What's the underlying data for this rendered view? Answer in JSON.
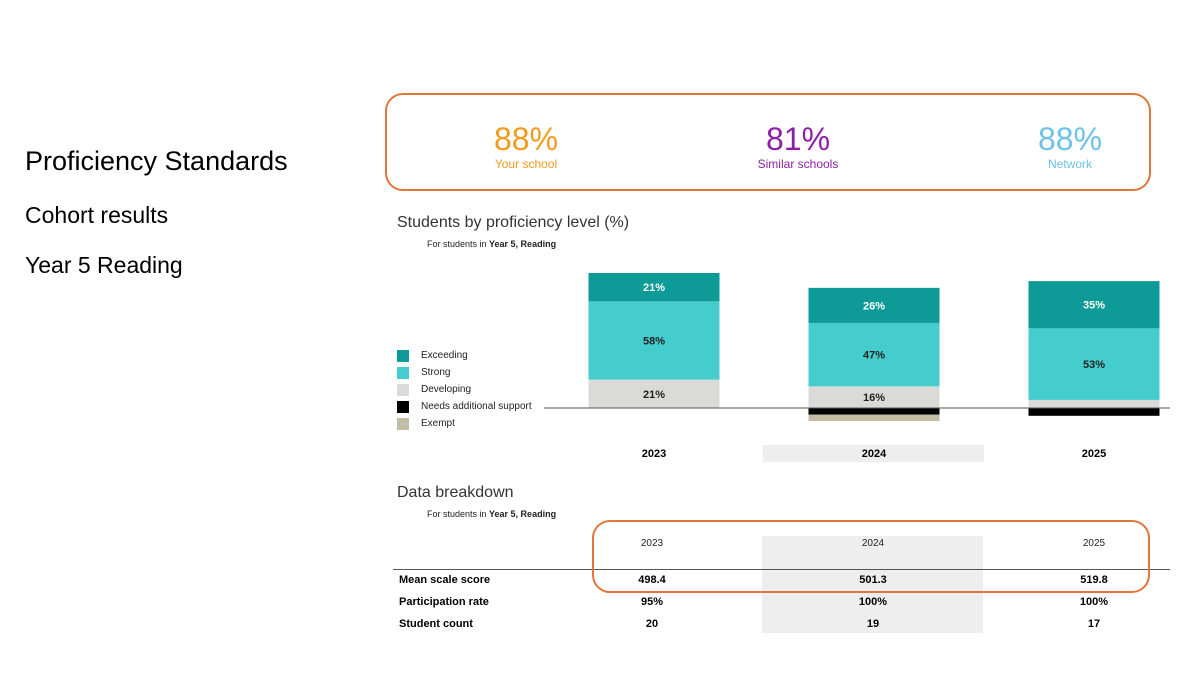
{
  "sidebar": {
    "title": "Proficiency Standards",
    "subtitle": "Cohort results",
    "context": "Year 5 Reading"
  },
  "kpis": [
    {
      "value": "88%",
      "label": "Your school",
      "color": "#F39A1C"
    },
    {
      "value": "81%",
      "label": "Similar schools",
      "color": "#8E1FA8"
    },
    {
      "value": "88%",
      "label": "Network",
      "color": "#6EC1E8"
    }
  ],
  "highlight_color": "#E0763A",
  "proficiency_section": {
    "title": "Students by proficiency level (%)",
    "subtitle_prefix": "For students in ",
    "subtitle_bold": "Year 5, Reading"
  },
  "breakdown_section": {
    "title": "Data breakdown",
    "subtitle_prefix": "For students in ",
    "subtitle_bold": "Year 5, Reading"
  },
  "legend": [
    {
      "label": "Exceeding",
      "color": "#0E9A96"
    },
    {
      "label": "Strong",
      "color": "#45CCCC"
    },
    {
      "label": "Developing",
      "color": "#DADAD8"
    },
    {
      "label": "Needs additional support",
      "color": "#000000"
    },
    {
      "label": "Exempt",
      "color": "#C2BDA3"
    }
  ],
  "chart_data": {
    "type": "bar",
    "stacked": true,
    "title": "Students by proficiency level (%)",
    "categories": [
      "2023",
      "2024",
      "2025"
    ],
    "highlighted_category": "2024",
    "series": [
      {
        "name": "Exceeding",
        "values": [
          21,
          26,
          35
        ],
        "labels": [
          "21%",
          "26%",
          "35%"
        ],
        "color": "#0E9A96"
      },
      {
        "name": "Strong",
        "values": [
          58,
          47,
          53
        ],
        "labels": [
          "58%",
          "47%",
          "53%"
        ],
        "color": "#45CCCC"
      },
      {
        "name": "Developing",
        "values": [
          21,
          16,
          6
        ],
        "labels": [
          "21%",
          "16%",
          ""
        ],
        "color": "#DADAD8"
      },
      {
        "name": "Needs additional support",
        "values": [
          0,
          5,
          6
        ],
        "labels": [
          "",
          "",
          ""
        ],
        "color": "#000000"
      },
      {
        "name": "Exempt",
        "values": [
          0,
          5,
          0
        ],
        "labels": [
          "",
          "",
          ""
        ],
        "color": "#C2BDA3"
      }
    ],
    "ylim": [
      -12,
      100
    ],
    "grid": false,
    "legend_position": "left"
  },
  "table": {
    "columns": [
      "2023",
      "2024",
      "2025"
    ],
    "rows": [
      {
        "label": "Mean scale score",
        "values": [
          "498.4",
          "501.3",
          "519.8"
        ]
      },
      {
        "label": "Participation rate",
        "values": [
          "95%",
          "100%",
          "100%"
        ]
      },
      {
        "label": "Student count",
        "values": [
          "20",
          "19",
          "17"
        ]
      }
    ]
  }
}
